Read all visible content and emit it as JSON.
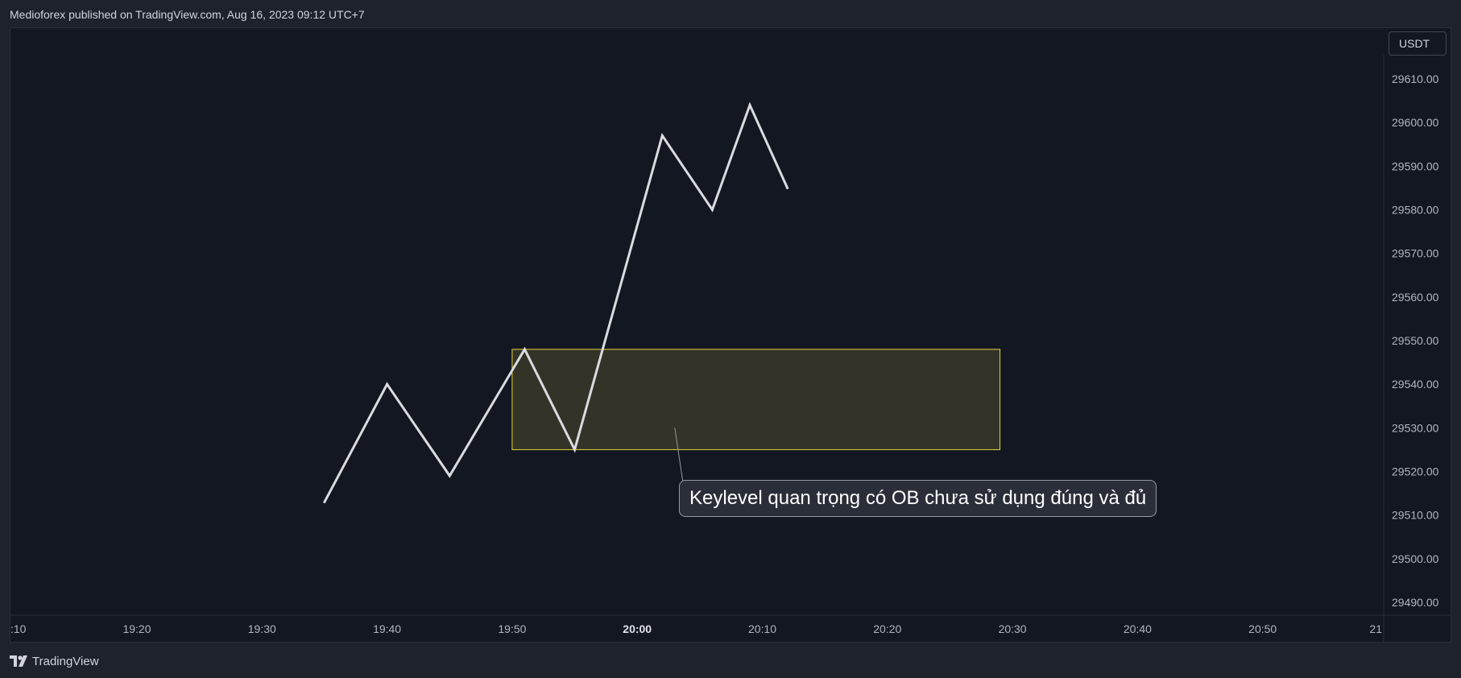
{
  "header": {
    "published": "Medioforex published on TradingView.com, Aug 16, 2023 09:12 UTC+7"
  },
  "footer": {
    "brand": "TradingView"
  },
  "colors": {
    "background": "#131722",
    "line": "#dadbe0",
    "zone_fill": "#3a3a28",
    "zone_border": "#e5d43b",
    "axis_text": "#b2b5be"
  },
  "chart_data": {
    "type": "line",
    "currency": "USDT",
    "x_ticks": [
      ":10",
      "19:20",
      "19:30",
      "19:40",
      "19:50",
      "20:00",
      "20:10",
      "20:20",
      "20:30",
      "20:40",
      "20:50",
      "21"
    ],
    "x_ticks_bold": [
      "20:00"
    ],
    "y_ticks": [
      "29610.00",
      "29600.00",
      "29590.00",
      "29580.00",
      "29570.00",
      "29560.00",
      "29550.00",
      "29540.00",
      "29530.00",
      "29520.00",
      "29510.00",
      "29500.00",
      "29490.00"
    ],
    "ylim": [
      29490,
      29610
    ],
    "series": [
      {
        "points": [
          {
            "x": "19:35",
            "y": 29513
          },
          {
            "x": "19:40",
            "y": 29540
          },
          {
            "x": "19:45",
            "y": 29519
          },
          {
            "x": "19:51",
            "y": 29548
          },
          {
            "x": "19:55",
            "y": 29525
          },
          {
            "x": "20:02",
            "y": 29597
          },
          {
            "x": "20:06",
            "y": 29580
          },
          {
            "x": "20:09",
            "y": 29604
          },
          {
            "x": "20:12",
            "y": 29585
          }
        ]
      }
    ],
    "zone": {
      "x_start": "19:50",
      "x_end": "20:29",
      "y_low": 29525,
      "y_high": 29548
    },
    "annotation": {
      "text": "Keylevel quan trọng có OB chưa sử dụng đúng và đủ",
      "anchor": {
        "x": "20:03",
        "y": 29530
      }
    }
  }
}
